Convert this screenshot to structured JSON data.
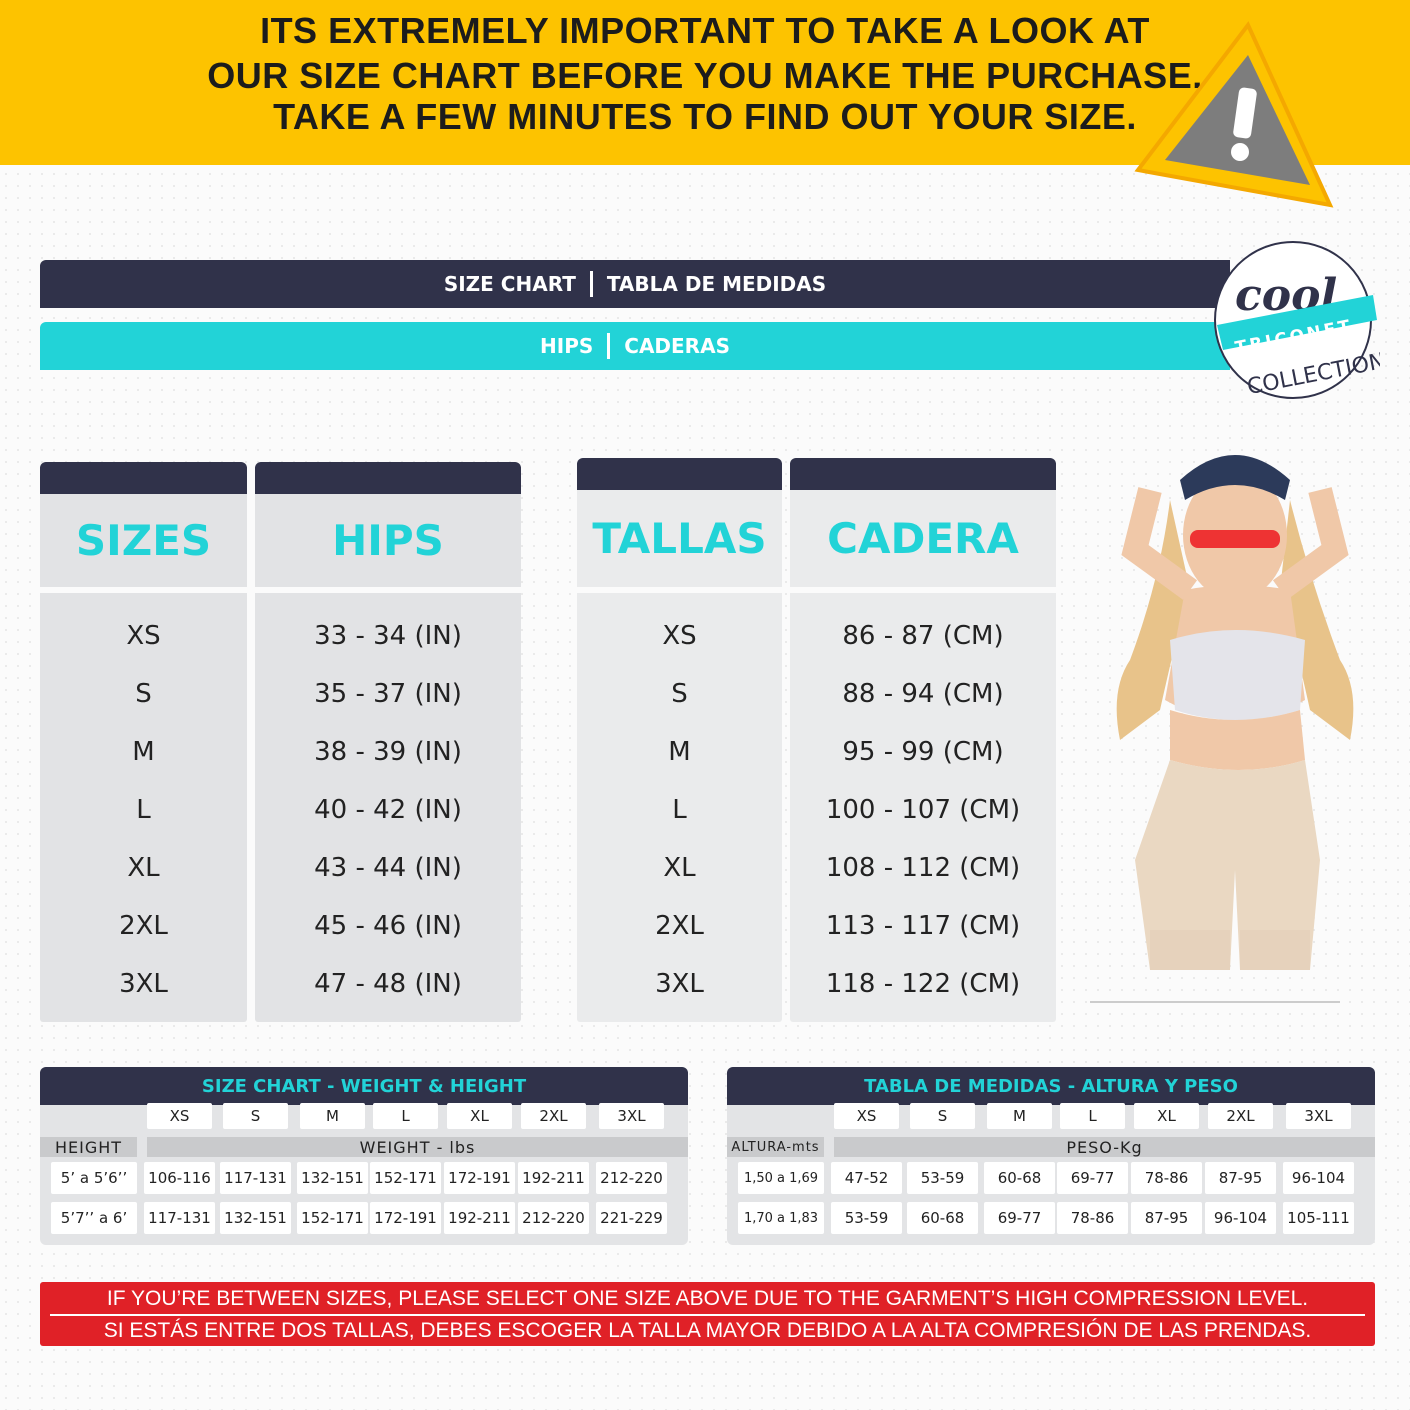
{
  "banner": {
    "lines": [
      "ITS EXTREMELY IMPORTANT TO TAKE A LOOK AT",
      "OUR SIZE CHART BEFORE YOU MAKE THE PURCHASE.",
      "TAKE A FEW MINUTES TO FIND OUT YOUR SIZE."
    ],
    "color": "#fdc300",
    "warning_icon": "warning-triangle-icon"
  },
  "header": {
    "left": "SIZE CHART",
    "right": "TABLA DE MEDIDAS",
    "sub_left": "HIPS",
    "sub_right": "CADERAS",
    "dark": "#30324a",
    "accent": "#22d3d7"
  },
  "logo": {
    "script": "cool",
    "band": "TRICONET",
    "bottom": "COLLECTION"
  },
  "hips_in": {
    "col1": "SIZES",
    "col2": "HIPS",
    "sizes": [
      "XS",
      "S",
      "M",
      "L",
      "XL",
      "2XL",
      "3XL"
    ],
    "values": [
      "33 - 34 (IN)",
      "35 - 37 (IN)",
      "38 - 39 (IN)",
      "40 - 42 (IN)",
      "43 - 44 (IN)",
      "45 - 46 (IN)",
      "47 - 48 (IN)"
    ]
  },
  "hips_cm": {
    "col1": "TALLAS",
    "col2": "CADERA",
    "sizes": [
      "XS",
      "S",
      "M",
      "L",
      "XL",
      "2XL",
      "3XL"
    ],
    "values": [
      "86 - 87 (CM)",
      "88 - 94 (CM)",
      "95 - 99 (CM)",
      "100 - 107 (CM)",
      "108 - 112 (CM)",
      "113 - 117 (CM)",
      "118 - 122 (CM)"
    ]
  },
  "weight_lbs": {
    "title": "SIZE CHART - WEIGHT & HEIGHT",
    "sizes": [
      "XS",
      "S",
      "M",
      "L",
      "XL",
      "2XL",
      "3XL"
    ],
    "row_label": "HEIGHT",
    "group_label": "WEIGHT - lbs",
    "rows": [
      {
        "height": "5’ a 5’6’’",
        "values": [
          "106-116",
          "117-131",
          "132-151",
          "152-171",
          "172-191",
          "192-211",
          "212-220"
        ]
      },
      {
        "height": "5’7’’ a 6’",
        "values": [
          "117-131",
          "132-151",
          "152-171",
          "172-191",
          "192-211",
          "212-220",
          "221-229"
        ]
      }
    ]
  },
  "weight_kg": {
    "title": "TABLA DE MEDIDAS - ALTURA Y PESO",
    "sizes": [
      "XS",
      "S",
      "M",
      "L",
      "XL",
      "2XL",
      "3XL"
    ],
    "row_label": "ALTURA-mts",
    "group_label": "PESO-Kg",
    "rows": [
      {
        "height": "1,50 a 1,69",
        "values": [
          "47-52",
          "53-59",
          "60-68",
          "69-77",
          "78-86",
          "87-95",
          "96-104"
        ]
      },
      {
        "height": "1,70 a 1,83",
        "values": [
          "53-59",
          "60-68",
          "69-77",
          "78-86",
          "87-95",
          "96-104",
          "105-111"
        ]
      }
    ]
  },
  "notice": {
    "en": "IF YOU’RE BETWEEN SIZES, PLEASE SELECT ONE SIZE ABOVE DUE TO THE GARMENT’S HIGH COMPRESSION LEVEL.",
    "es": "SI ESTÁS ENTRE DOS TALLAS, DEBES ESCOGER LA TALLA MAYOR DEBIDO A LA ALTA COMPRESIÓN DE LAS PRENDAS.",
    "color": "#e02127"
  }
}
